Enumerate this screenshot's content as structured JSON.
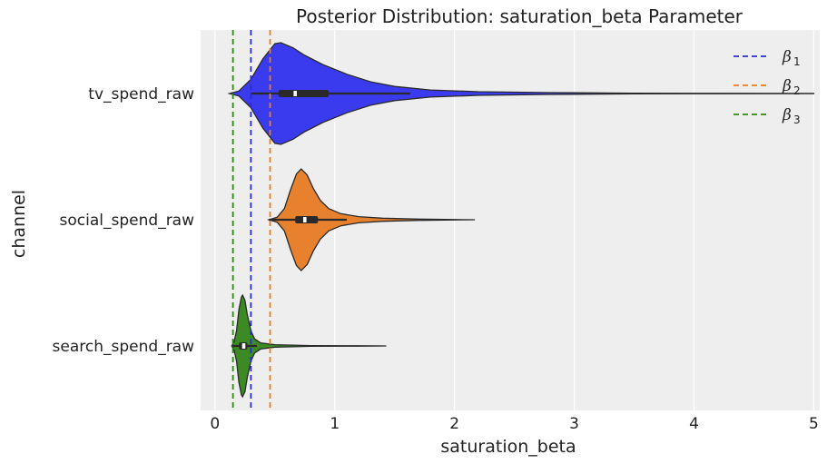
{
  "chart_data": {
    "type": "violin",
    "title": "Posterior Distribution: saturation_beta Parameter",
    "xlabel": "saturation_beta",
    "ylabel": "channel",
    "xlim": [
      -0.12,
      5.05
    ],
    "xticks": [
      0,
      1,
      2,
      3,
      4,
      5
    ],
    "grid": true,
    "orientation": "horizontal",
    "categories": [
      "tv_spend_raw",
      "social_spend_raw",
      "search_spend_raw"
    ],
    "series": [
      {
        "category": "tv_spend_raw",
        "color": "#3a3aee",
        "min": 0.14,
        "q1": 0.53,
        "median": 0.67,
        "q3": 0.95,
        "max": 5.0,
        "whisker_low": 0.3,
        "whisker_high": 1.63,
        "density": [
          [
            0.12,
            0.0
          ],
          [
            0.2,
            0.05
          ],
          [
            0.3,
            0.28
          ],
          [
            0.4,
            0.68
          ],
          [
            0.5,
            0.98
          ],
          [
            0.55,
            1.0
          ],
          [
            0.65,
            0.9
          ],
          [
            0.75,
            0.75
          ],
          [
            0.9,
            0.57
          ],
          [
            1.1,
            0.38
          ],
          [
            1.3,
            0.23
          ],
          [
            1.5,
            0.14
          ],
          [
            1.8,
            0.07
          ],
          [
            2.2,
            0.035
          ],
          [
            2.8,
            0.017
          ],
          [
            3.5,
            0.008
          ],
          [
            4.2,
            0.004
          ],
          [
            5.0,
            0.002
          ]
        ]
      },
      {
        "category": "social_spend_raw",
        "color": "#e8812e",
        "min": 0.45,
        "q1": 0.67,
        "median": 0.75,
        "q3": 0.86,
        "max": 2.17,
        "whisker_low": 0.45,
        "whisker_high": 1.1,
        "density": [
          [
            0.45,
            0.0
          ],
          [
            0.52,
            0.05
          ],
          [
            0.58,
            0.22
          ],
          [
            0.63,
            0.58
          ],
          [
            0.68,
            0.9
          ],
          [
            0.72,
            1.0
          ],
          [
            0.77,
            0.88
          ],
          [
            0.82,
            0.62
          ],
          [
            0.88,
            0.38
          ],
          [
            0.95,
            0.22
          ],
          [
            1.05,
            0.12
          ],
          [
            1.2,
            0.06
          ],
          [
            1.4,
            0.03
          ],
          [
            1.7,
            0.012
          ],
          [
            2.0,
            0.004
          ],
          [
            2.17,
            0.0
          ]
        ]
      },
      {
        "category": "search_spend_raw",
        "color": "#3c8a24",
        "min": 0.14,
        "q1": 0.2,
        "median": 0.24,
        "q3": 0.27,
        "max": 1.43,
        "whisker_low": 0.15,
        "whisker_high": 0.35,
        "density": [
          [
            0.14,
            0.0
          ],
          [
            0.16,
            0.08
          ],
          [
            0.18,
            0.3
          ],
          [
            0.2,
            0.72
          ],
          [
            0.22,
            0.96
          ],
          [
            0.23,
            1.0
          ],
          [
            0.25,
            0.9
          ],
          [
            0.27,
            0.62
          ],
          [
            0.3,
            0.3
          ],
          [
            0.33,
            0.14
          ],
          [
            0.38,
            0.06
          ],
          [
            0.5,
            0.025
          ],
          [
            0.8,
            0.008
          ],
          [
            1.2,
            0.003
          ],
          [
            1.43,
            0.0
          ]
        ]
      }
    ],
    "reference_lines": [
      {
        "label": "β",
        "sub": "1",
        "value": 0.3,
        "color": "#2b2bd4"
      },
      {
        "label": "β",
        "sub": "2",
        "value": 0.46,
        "color": "#f07b1a"
      },
      {
        "label": "β",
        "sub": "3",
        "value": 0.15,
        "color": "#2e8a12"
      }
    ],
    "legend_position": "top-right"
  }
}
